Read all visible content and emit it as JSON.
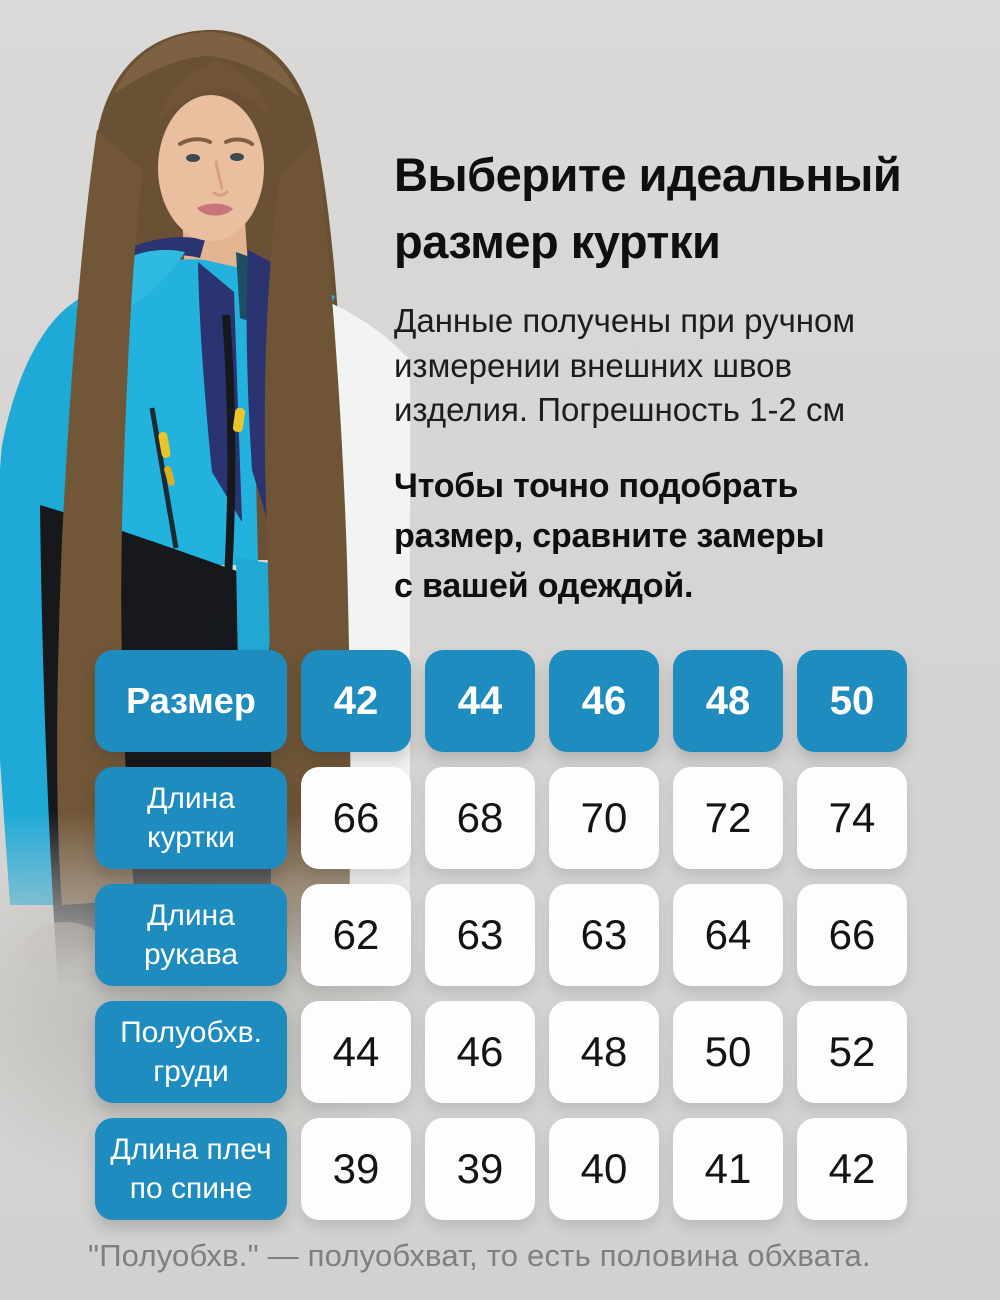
{
  "hero": {
    "title": "Выберите идеальный\nразмер куртки",
    "description": "Данные получены при ручном\nизмерении внешних швов\nизделия. Погрешность 1-2 см",
    "note": "Чтобы точно подобрать\nразмер, сравните замеры\nс вашей одеждой."
  },
  "photo": {
    "description": "Модель в горнолыжной куртке",
    "colors": {
      "jacket_cyan": "#23b1dd",
      "jacket_sleeve_cyan": "#1fa9d6",
      "jacket_navy": "#2b3470",
      "jacket_black": "#16181c",
      "jacket_white": "#f2f3f3",
      "hood_teal": "#1d4f63",
      "zipper_yellow": "#e9c42a",
      "hair": "#6a5135",
      "skin": "#eabf9f",
      "tshirt_gray": "#6f6966"
    }
  },
  "size_table": {
    "header_label": "Размер",
    "sizes": [
      "42",
      "44",
      "46",
      "48",
      "50"
    ],
    "rows": [
      {
        "label": "Длина\nкуртки",
        "values": [
          "66",
          "68",
          "70",
          "72",
          "74"
        ]
      },
      {
        "label": "Длина\nрукава",
        "values": [
          "62",
          "63",
          "63",
          "64",
          "66"
        ]
      },
      {
        "label": "Полуобхв.\nгруди",
        "values": [
          "44",
          "46",
          "48",
          "50",
          "52"
        ]
      },
      {
        "label": "Длина плеч\nпо спине",
        "values": [
          "39",
          "39",
          "40",
          "41",
          "42"
        ]
      }
    ]
  },
  "footnote": "\"Полуобхв.\" — полуобхват, то есть половина обхвата.",
  "colors": {
    "accent_blue": "#1e8cbe",
    "background": "#d6d5d3",
    "cell_white": "#fdfdfd",
    "text_dark": "#0f0f0f",
    "footnote_gray": "#7f7f7f"
  }
}
